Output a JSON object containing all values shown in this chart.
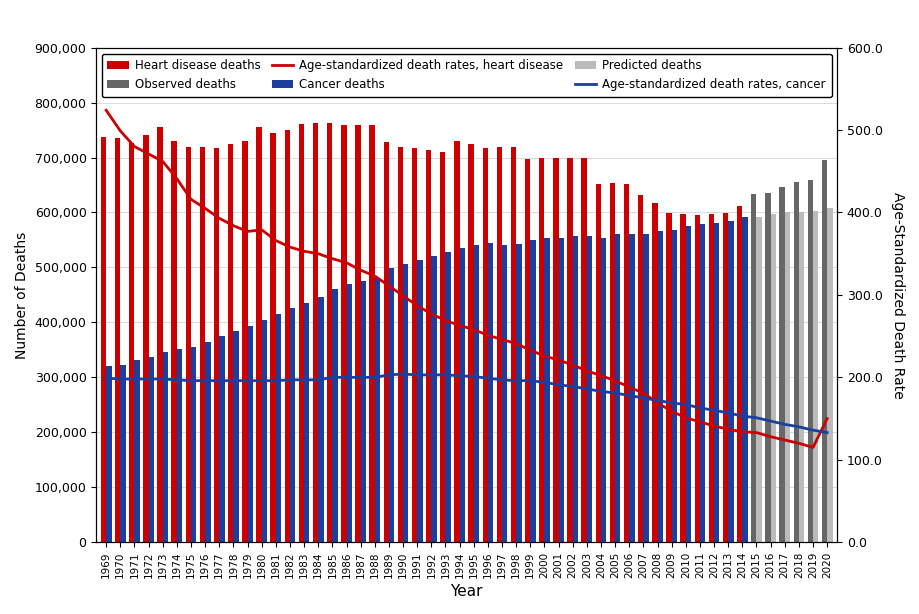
{
  "years": [
    1969,
    1970,
    1971,
    1972,
    1973,
    1974,
    1975,
    1976,
    1977,
    1978,
    1979,
    1980,
    1981,
    1982,
    1983,
    1984,
    1985,
    1986,
    1987,
    1988,
    1989,
    1990,
    1991,
    1992,
    1993,
    1994,
    1995,
    1996,
    1997,
    1998,
    1999,
    2000,
    2001,
    2002,
    2003,
    2004,
    2005,
    2006,
    2007,
    2008,
    2009,
    2010,
    2011,
    2012,
    2013,
    2014,
    2015,
    2016,
    2017,
    2018,
    2019,
    2020
  ],
  "heart_deaths": [
    737000,
    735000,
    727000,
    741000,
    755000,
    730000,
    719000,
    720000,
    718000,
    725000,
    731000,
    755000,
    745000,
    750000,
    761000,
    762000,
    762000,
    760000,
    760000,
    760000,
    728000,
    720000,
    718000,
    714000,
    710000,
    730000,
    725000,
    718000,
    720000,
    720000,
    697000,
    700000,
    700000,
    699000,
    700000,
    652000,
    653000,
    652000,
    631000,
    617000,
    599000,
    597000,
    596000,
    597000,
    599000,
    611000,
    633000,
    635000,
    647000,
    655000,
    659000,
    696000
  ],
  "cancer_deaths": [
    321000,
    323000,
    331000,
    337000,
    346000,
    351000,
    356000,
    364000,
    376000,
    384000,
    394000,
    404000,
    416000,
    426000,
    436000,
    446000,
    461000,
    469000,
    476000,
    481000,
    499000,
    506000,
    514000,
    521000,
    529000,
    536000,
    541000,
    544000,
    541000,
    542000,
    550000,
    554000,
    554000,
    557000,
    557000,
    554000,
    560000,
    561000,
    561000,
    566000,
    568000,
    575000,
    579000,
    581000,
    585000,
    591000,
    592000,
    598000,
    601000,
    601000,
    602000,
    608000
  ],
  "asdr_heart": [
    524,
    499,
    480,
    471,
    462,
    441,
    416,
    405,
    393,
    384,
    377,
    379,
    366,
    358,
    353,
    350,
    344,
    339,
    330,
    323,
    311,
    299,
    287,
    277,
    269,
    263,
    258,
    251,
    246,
    241,
    233,
    226,
    221,
    215,
    208,
    202,
    196,
    188,
    181,
    169,
    159,
    151,
    146,
    141,
    137,
    134,
    133,
    128,
    124,
    120,
    115,
    150
  ],
  "asdr_cancer": [
    199,
    198,
    198,
    198,
    198,
    197,
    196,
    196,
    196,
    196,
    196,
    196,
    196,
    197,
    197,
    197,
    200,
    200,
    200,
    200,
    203,
    204,
    203,
    203,
    203,
    202,
    201,
    199,
    197,
    196,
    196,
    194,
    191,
    189,
    186,
    183,
    181,
    178,
    175,
    172,
    169,
    167,
    163,
    160,
    157,
    153,
    151,
    147,
    143,
    140,
    136,
    133
  ],
  "switch_year": 2015,
  "heart_color": "#cc0000",
  "cancer_color": "#1a3f9e",
  "observed_color": "#666666",
  "predicted_color": "#bbbbbb",
  "xlabel": "Year",
  "ylabel_left": "Number of Deaths",
  "ylabel_right": "Age-Standardized Death Rate",
  "ylim_left": [
    0,
    900000
  ],
  "ylim_right": [
    0,
    600
  ],
  "yticks_left": [
    0,
    100000,
    200000,
    300000,
    400000,
    500000,
    600000,
    700000,
    800000,
    900000
  ],
  "yticks_right": [
    0.0,
    100.0,
    200.0,
    300.0,
    400.0,
    500.0,
    600.0
  ]
}
